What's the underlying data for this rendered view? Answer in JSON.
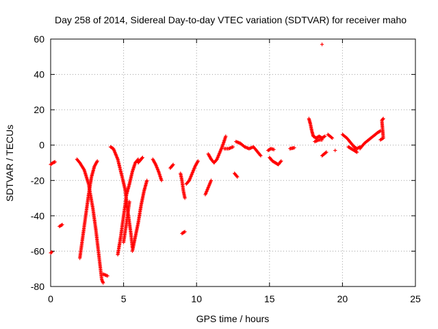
{
  "chart_data": {
    "type": "scatter",
    "title": "Day 258 of 2014, Sidereal Day-to-day VTEC variation (SDTVAR) for receiver maho",
    "xlabel": "GPS time / hours",
    "ylabel": "SDTVAR / TECUs",
    "xlim": [
      0,
      25
    ],
    "ylim": [
      -80,
      60
    ],
    "xticks": [
      "0",
      "5",
      "10",
      "15",
      "20",
      "25"
    ],
    "yticks": [
      "-80",
      "-60",
      "-40",
      "-20",
      "0",
      "20",
      "40",
      "60"
    ],
    "grid": true,
    "marker": "+",
    "series_color": "#ff0000",
    "segments": [
      [
        [
          0.0,
          -11
        ],
        [
          0.15,
          -10
        ],
        [
          0.3,
          -9.5
        ]
      ],
      [
        [
          0.0,
          -61
        ],
        [
          0.08,
          -60.5
        ]
      ],
      [
        [
          0.6,
          -46
        ],
        [
          0.8,
          -45
        ]
      ],
      [
        [
          1.8,
          -8
        ],
        [
          2.0,
          -10
        ],
        [
          2.3,
          -14
        ],
        [
          2.6,
          -22
        ],
        [
          2.9,
          -36
        ],
        [
          3.1,
          -48
        ],
        [
          3.3,
          -62
        ],
        [
          3.5,
          -76
        ],
        [
          3.6,
          -78
        ]
      ],
      [
        [
          3.6,
          -73
        ],
        [
          3.9,
          -74
        ]
      ],
      [
        [
          2.0,
          -64
        ],
        [
          2.2,
          -52
        ],
        [
          2.4,
          -40
        ],
        [
          2.6,
          -28
        ],
        [
          2.8,
          -18
        ],
        [
          3.0,
          -12
        ],
        [
          3.2,
          -9
        ]
      ],
      [
        [
          4.1,
          -1
        ],
        [
          4.3,
          -2
        ],
        [
          4.6,
          -8
        ],
        [
          4.9,
          -18
        ],
        [
          5.1,
          -25
        ],
        [
          5.3,
          -38
        ],
        [
          5.5,
          -50
        ],
        [
          5.6,
          -58
        ]
      ],
      [
        [
          4.6,
          -62
        ],
        [
          4.8,
          -52
        ],
        [
          5.0,
          -40
        ],
        [
          5.2,
          -28
        ],
        [
          5.4,
          -22
        ],
        [
          5.6,
          -15
        ],
        [
          5.8,
          -10
        ],
        [
          6.0,
          -8
        ]
      ],
      [
        [
          5.0,
          -55
        ],
        [
          5.2,
          -44
        ],
        [
          5.4,
          -32
        ]
      ],
      [
        [
          5.6,
          -60
        ],
        [
          5.8,
          -52
        ],
        [
          6.0,
          -44
        ],
        [
          6.2,
          -34
        ],
        [
          6.4,
          -26
        ],
        [
          6.6,
          -20
        ]
      ],
      [
        [
          6.0,
          -10
        ],
        [
          6.2,
          -8
        ],
        [
          6.3,
          -7
        ]
      ],
      [
        [
          7.0,
          -8
        ],
        [
          7.2,
          -11
        ],
        [
          7.4,
          -15
        ],
        [
          7.6,
          -20
        ]
      ],
      [
        [
          8.2,
          -13
        ],
        [
          8.4,
          -11
        ]
      ],
      [
        [
          8.9,
          -16
        ],
        [
          9.0,
          -20
        ],
        [
          9.1,
          -26
        ],
        [
          9.2,
          -30
        ]
      ],
      [
        [
          9.0,
          -50
        ],
        [
          9.2,
          -49
        ]
      ],
      [
        [
          9.3,
          -22
        ],
        [
          9.5,
          -20
        ],
        [
          9.7,
          -16
        ],
        [
          9.9,
          -12
        ],
        [
          10.1,
          -9
        ]
      ],
      [
        [
          10.6,
          -28
        ],
        [
          10.8,
          -24
        ],
        [
          11.0,
          -20
        ]
      ],
      [
        [
          10.8,
          -5
        ],
        [
          11.0,
          -8
        ],
        [
          11.2,
          -10
        ],
        [
          11.4,
          -8
        ],
        [
          11.6,
          -4
        ],
        [
          11.8,
          0
        ],
        [
          12.0,
          5
        ]
      ],
      [
        [
          11.9,
          -2
        ],
        [
          12.2,
          -2
        ],
        [
          12.5,
          -1
        ]
      ],
      [
        [
          12.6,
          -16
        ],
        [
          12.8,
          -18
        ]
      ],
      [
        [
          12.7,
          2
        ],
        [
          13.0,
          1
        ],
        [
          13.3,
          -1
        ],
        [
          13.6,
          -2
        ],
        [
          13.9,
          -1
        ],
        [
          14.2,
          -4
        ],
        [
          14.4,
          -6
        ]
      ],
      [
        [
          14.9,
          -3
        ],
        [
          15.1,
          -2
        ],
        [
          15.3,
          -2.5
        ]
      ],
      [
        [
          15.0,
          -7
        ],
        [
          15.2,
          -9
        ],
        [
          15.4,
          -10
        ],
        [
          15.6,
          -11
        ],
        [
          15.8,
          -9
        ]
      ],
      [
        [
          16.4,
          -2
        ],
        [
          16.7,
          -1.5
        ]
      ],
      [
        [
          17.7,
          15
        ],
        [
          17.8,
          12
        ],
        [
          17.9,
          8
        ],
        [
          18.0,
          5
        ],
        [
          18.2,
          4
        ],
        [
          18.4,
          5
        ],
        [
          18.6,
          4
        ],
        [
          18.8,
          5
        ]
      ],
      [
        [
          18.1,
          2
        ],
        [
          18.4,
          3
        ],
        [
          18.6,
          3
        ]
      ],
      [
        [
          18.6,
          57
        ]
      ],
      [
        [
          18.6,
          -6
        ],
        [
          18.9,
          -4
        ]
      ],
      [
        [
          19.0,
          6
        ],
        [
          19.3,
          4
        ]
      ],
      [
        [
          19.5,
          -3
        ]
      ],
      [
        [
          20.0,
          6
        ],
        [
          20.3,
          4
        ],
        [
          20.6,
          1
        ],
        [
          20.8,
          -1
        ],
        [
          21.0,
          -2
        ],
        [
          21.2,
          -1
        ]
      ],
      [
        [
          20.4,
          -1
        ],
        [
          20.6,
          -2
        ],
        [
          20.8,
          -3
        ],
        [
          21.0,
          -4
        ]
      ],
      [
        [
          21.2,
          -2
        ],
        [
          21.5,
          1
        ],
        [
          21.8,
          3
        ],
        [
          22.1,
          5
        ],
        [
          22.4,
          7
        ],
        [
          22.6,
          8
        ]
      ],
      [
        [
          22.6,
          3
        ],
        [
          22.8,
          4
        ],
        [
          22.7,
          14
        ],
        [
          22.8,
          15
        ]
      ]
    ]
  }
}
